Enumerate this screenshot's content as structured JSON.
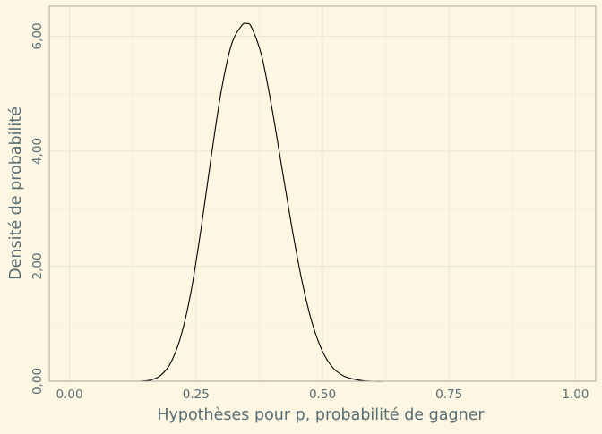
{
  "chart_data": {
    "type": "line",
    "title": "",
    "xlabel": "Hypothèses pour p, probabilité de gagner",
    "ylabel": "Densité de probabilité",
    "xlim": [
      -0.04,
      1.04
    ],
    "ylim": [
      0,
      6.52
    ],
    "x_ticks": [
      0,
      0.25,
      0.5,
      0.75,
      1
    ],
    "x_tick_labels": [
      "0.00",
      "0.25",
      "0.50",
      "0.75",
      "1.00"
    ],
    "y_ticks": [
      0,
      2,
      4,
      6
    ],
    "y_tick_labels": [
      "0,00",
      "2,00",
      "4,00",
      "6,00"
    ],
    "grid": true,
    "legend": "none",
    "colors": {
      "background": "#fdf6e3",
      "panel_border": "#a8a8a0",
      "grid_major": "#ebe6d6",
      "grid_minor": "#f3eedd",
      "line": "#000000",
      "text": "#586e75"
    },
    "series": [
      {
        "x": [
          0.14,
          0.16,
          0.18,
          0.2,
          0.22,
          0.24,
          0.26,
          0.28,
          0.3,
          0.32,
          0.34,
          0.35,
          0.36,
          0.38,
          0.4,
          0.42,
          0.44,
          0.46,
          0.48,
          0.5,
          0.52,
          0.54,
          0.56,
          0.58,
          0.6,
          0.62
        ],
        "y": [
          0.0,
          0.02,
          0.1,
          0.32,
          0.78,
          1.55,
          2.65,
          3.9,
          5.05,
          5.85,
          6.18,
          6.22,
          6.15,
          5.65,
          4.75,
          3.7,
          2.65,
          1.72,
          1.0,
          0.52,
          0.24,
          0.1,
          0.04,
          0.01,
          0.0,
          0.0
        ]
      }
    ]
  }
}
